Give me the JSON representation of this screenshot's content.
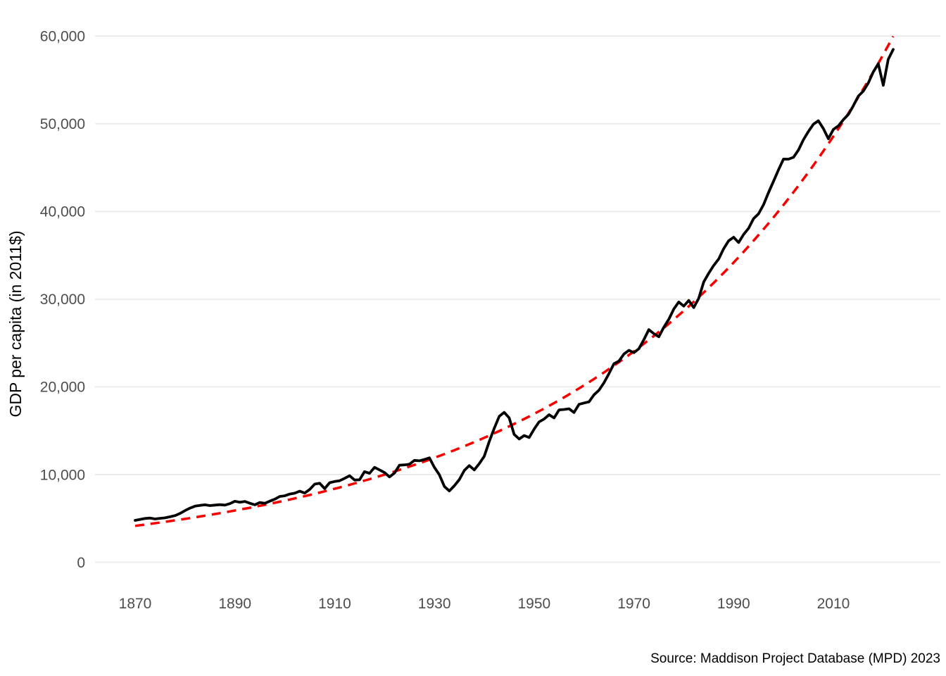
{
  "chart_data": {
    "type": "line",
    "title": "",
    "ylabel": "GDP per capita (in 2011$)",
    "xlabel": "",
    "caption": "Source: Maddison Project Database (MPD) 2023",
    "grid": "horizontal-only",
    "legend": "none",
    "background_color": "#ffffff",
    "gridline_color": "#ebebeb",
    "tick_label_color": "#4d4d4d",
    "xlim": [
      1862,
      2031
    ],
    "ylim": [
      0,
      62000
    ],
    "x_tick_values": [
      1870,
      1890,
      1910,
      1930,
      1950,
      1970,
      1990,
      2010
    ],
    "x_ticks": [
      "1870",
      "1890",
      "1910",
      "1930",
      "1950",
      "1970",
      "1990",
      "2010"
    ],
    "y_tick_values": [
      0,
      10000,
      20000,
      30000,
      40000,
      50000,
      60000
    ],
    "y_ticks": [
      "0",
      "10,000",
      "20,000",
      "30,000",
      "40,000",
      "50,000",
      "60,000"
    ],
    "series": [
      {
        "name": "gdp_per_capita_observed",
        "color": "#000000",
        "style": "solid",
        "line_width": 3.8,
        "x_start": 1870,
        "x_step": 1,
        "values": [
          4780,
          4890,
          4990,
          5040,
          4940,
          5010,
          5070,
          5190,
          5320,
          5570,
          5890,
          6170,
          6400,
          6490,
          6550,
          6460,
          6520,
          6570,
          6520,
          6690,
          6950,
          6850,
          6940,
          6730,
          6550,
          6820,
          6720,
          6970,
          7190,
          7510,
          7580,
          7780,
          7880,
          8110,
          7890,
          8300,
          8910,
          9010,
          8400,
          9070,
          9210,
          9300,
          9570,
          9870,
          9380,
          9410,
          10330,
          10140,
          10820,
          10530,
          10230,
          9730,
          10170,
          11070,
          11100,
          11180,
          11620,
          11570,
          11720,
          11910,
          10830,
          9980,
          8650,
          8130,
          8730,
          9430,
          10480,
          11020,
          10530,
          11250,
          12090,
          13770,
          15280,
          16640,
          17090,
          16470,
          14580,
          14060,
          14450,
          14230,
          15190,
          16010,
          16330,
          16820,
          16460,
          17370,
          17420,
          17500,
          17080,
          18010,
          18160,
          18300,
          19090,
          19620,
          20470,
          21500,
          22630,
          22940,
          23740,
          24170,
          23900,
          24350,
          25370,
          26530,
          26070,
          25710,
          26800,
          27710,
          28880,
          29670,
          29210,
          29850,
          29040,
          30100,
          31960,
          32960,
          33830,
          34570,
          35750,
          36660,
          37060,
          36460,
          37380,
          38080,
          39180,
          39730,
          40780,
          42170,
          43450,
          44760,
          45970,
          45960,
          46170,
          47010,
          48190,
          49130,
          49950,
          50340,
          49440,
          48290,
          49350,
          49750,
          50470,
          51060,
          52040,
          53140,
          53720,
          54640,
          55910,
          56840,
          54380,
          57340,
          58470
        ]
      },
      {
        "name": "exponential_trend",
        "color": "#f80000",
        "style": "dashed",
        "line_width": 3.5,
        "dash_pattern": [
          13,
          9
        ],
        "model": "exponential",
        "start_year": 1870,
        "end_year": 2022,
        "start_value": 4150,
        "growth_rate": 0.01757
      }
    ]
  }
}
